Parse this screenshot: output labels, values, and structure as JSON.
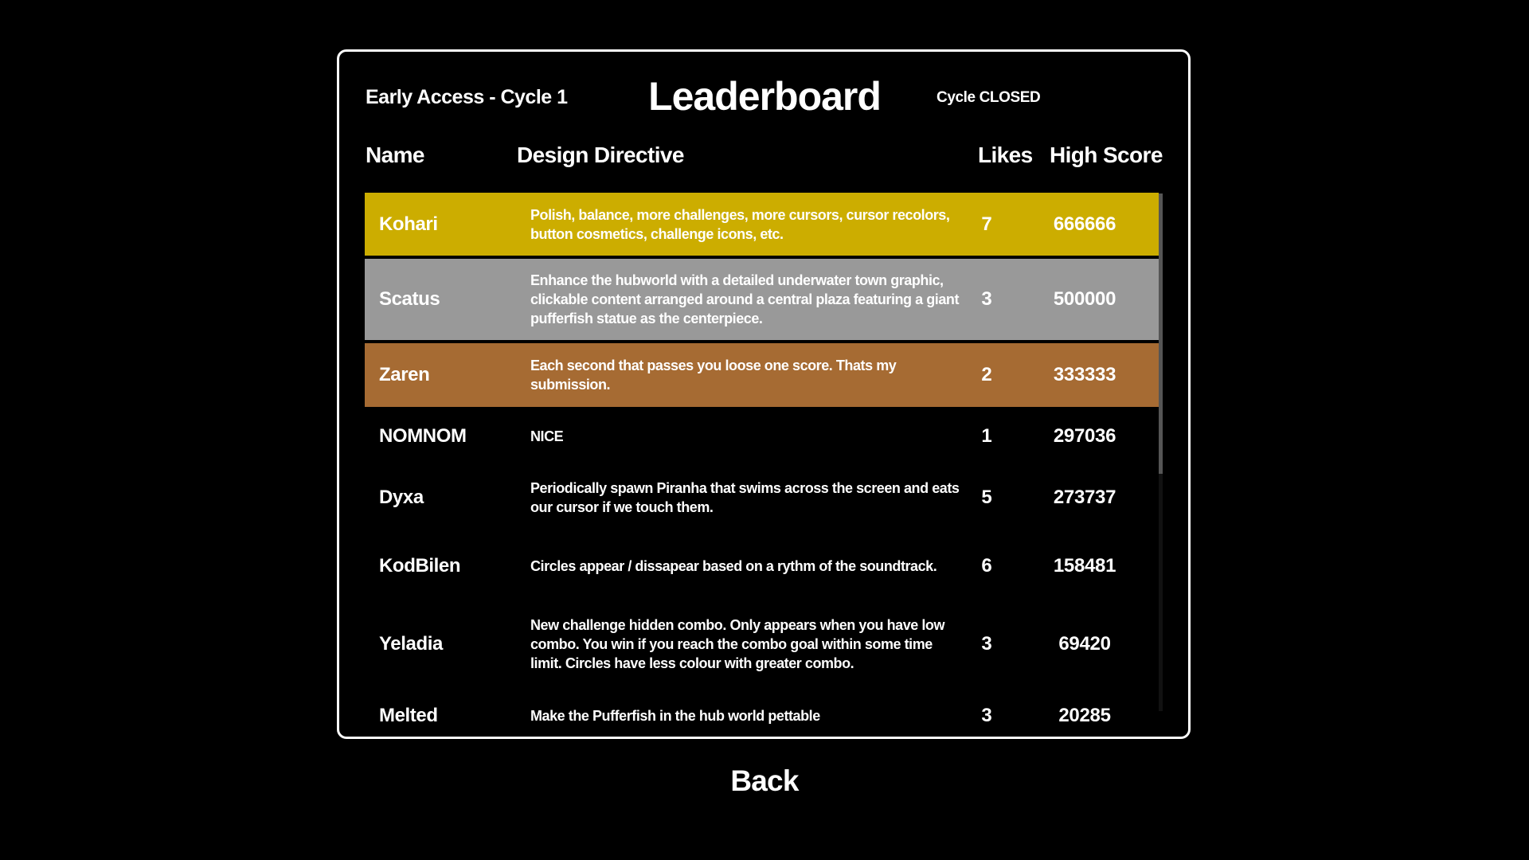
{
  "header": {
    "subtitle": "Early Access - Cycle 1",
    "title": "Leaderboard",
    "status": "Cycle CLOSED"
  },
  "columns": {
    "name": "Name",
    "directive": "Design Directive",
    "likes": "Likes",
    "score": "High Score"
  },
  "colors": {
    "gold": "#CCAD00",
    "silver": "#999999",
    "bronze": "#A66B33",
    "background": "#000000"
  },
  "rows": [
    {
      "name": "Kohari",
      "directive": "Polish, balance, more challenges, more cursors, cursor recolors, button cosmetics, challenge icons, etc.",
      "likes": "7",
      "score": "666666"
    },
    {
      "name": "Scatus",
      "directive": "Enhance the hubworld with a detailed underwater town graphic, clickable content arranged around a central plaza featuring a giant pufferfish statue as the centerpiece.",
      "likes": "3",
      "score": "500000"
    },
    {
      "name": "Zaren",
      "directive": "Each second that passes you loose one score. Thats my submission.",
      "likes": "2",
      "score": "333333"
    },
    {
      "name": "NOMNOM",
      "directive": "NICE",
      "likes": "1",
      "score": "297036"
    },
    {
      "name": "Dyxa",
      "directive": "Periodically spawn Piranha that swims across the screen and eats our cursor if we touch them.",
      "likes": "5",
      "score": "273737"
    },
    {
      "name": "KodBilen",
      "directive": "Circles appear / dissapear based on a rythm of the soundtrack.",
      "likes": "6",
      "score": "158481"
    },
    {
      "name": "Yeladia",
      "directive": "New challenge hidden combo. Only appears when you have low combo. You win if you reach the combo goal within some time limit. Circles have less colour with greater combo.",
      "likes": "3",
      "score": "69420"
    },
    {
      "name": "Melted",
      "directive": "Make the Pufferfish in the hub world pettable",
      "likes": "3",
      "score": "20285"
    }
  ],
  "back_label": "Back"
}
